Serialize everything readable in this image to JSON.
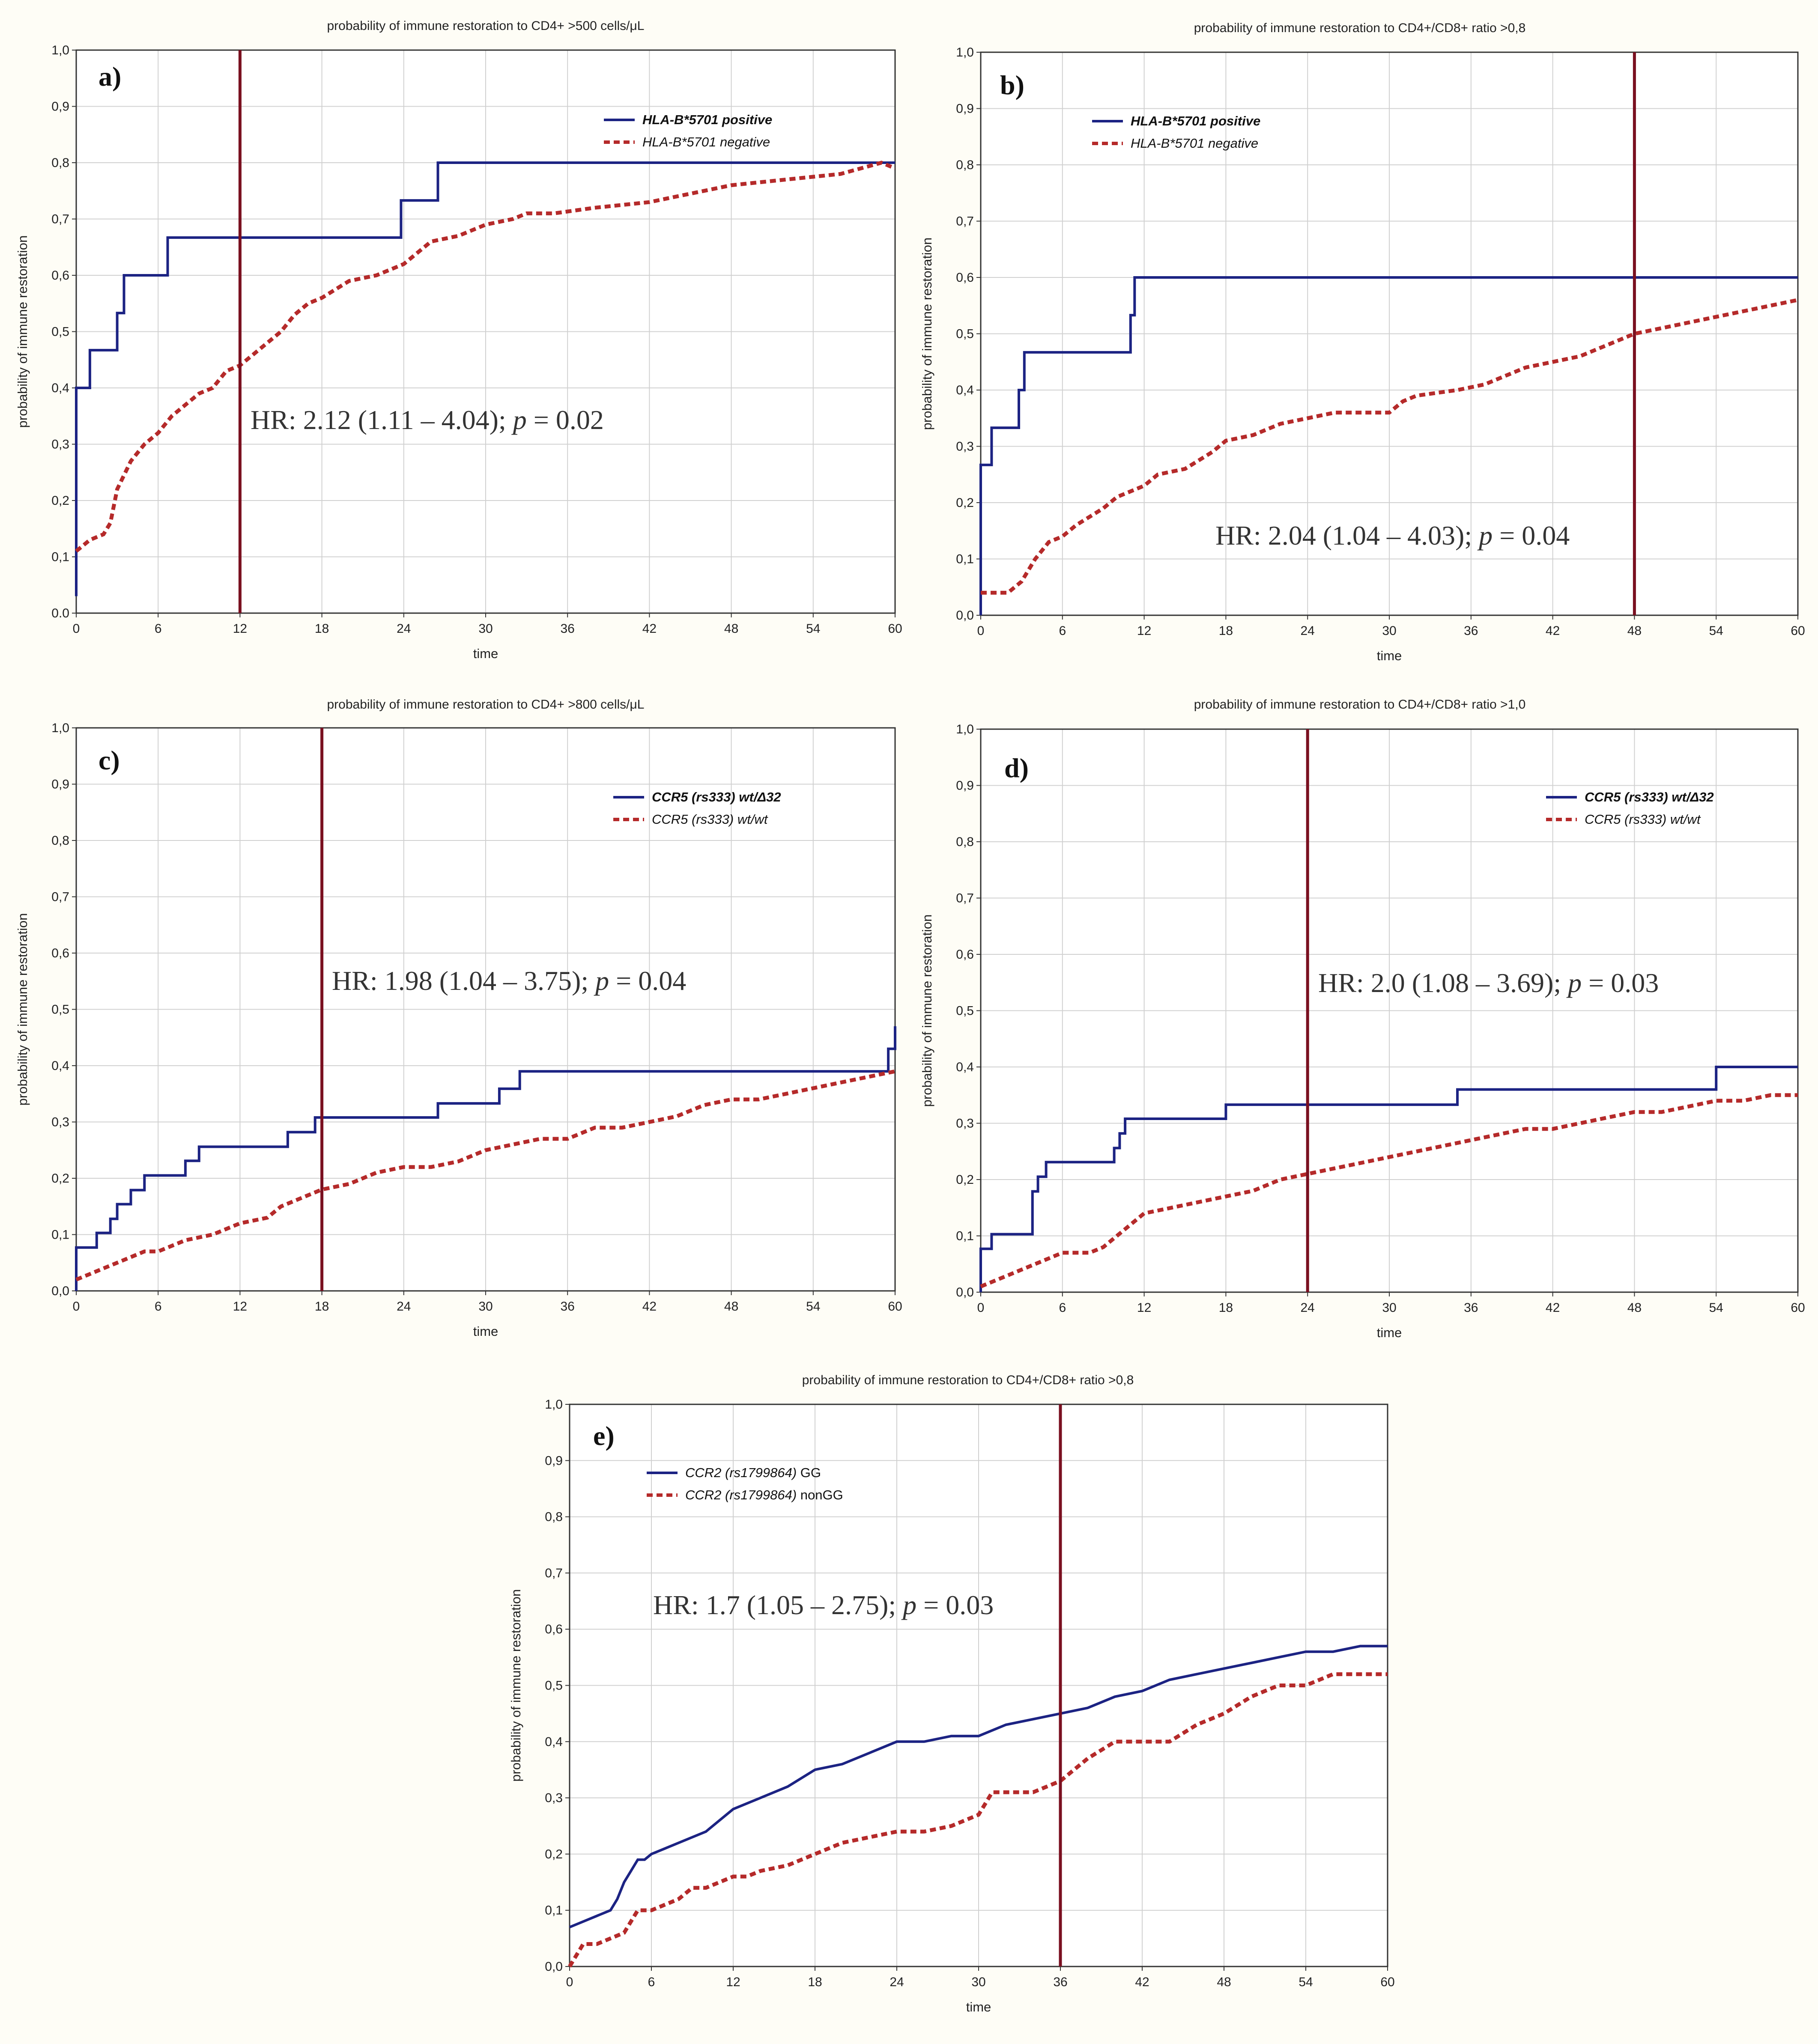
{
  "colors": {
    "blue_series": "#1c2383",
    "red_series": "#b52a2a",
    "vertical_line": "#7a1020",
    "grid": "#d0d0d0",
    "axis": "#333333",
    "plot_bg": "#ffffff"
  },
  "chart_data": [
    {
      "id": "a",
      "type": "line",
      "panel_label": "a)",
      "title": "probability of immune restoration to CD4+ >500 cells/μL",
      "xlabel": "time",
      "ylabel": "probability of immune restoration",
      "xlim": [
        0,
        60
      ],
      "ylim": [
        0,
        1
      ],
      "xticks": [
        "0",
        "6",
        "12",
        "18",
        "24",
        "30",
        "36",
        "42",
        "48",
        "54",
        "60"
      ],
      "yticks": [
        "0.0",
        "0,1",
        "0,2",
        "0,3",
        "0,4",
        "0,5",
        "0,6",
        "0,7",
        "0,8",
        "0,9",
        "1,0"
      ],
      "vline": 12,
      "hr_text": "HR: 2.12 (1.11 – 4.04); ",
      "p_label": "p",
      "p_text": " = 0.02",
      "legend_position": "top-right",
      "series": [
        {
          "name": "HLA-B*5701 positive",
          "style": "solid",
          "bold": true,
          "italic": true,
          "x": [
            0,
            0,
            1,
            1,
            3,
            3,
            3.5,
            3.5,
            6.7,
            6.7,
            23.8,
            23.8,
            26.5,
            26.5,
            60
          ],
          "y": [
            0.03,
            0.4,
            0.4,
            0.467,
            0.467,
            0.533,
            0.533,
            0.6,
            0.6,
            0.667,
            0.667,
            0.733,
            0.733,
            0.8,
            0.8
          ]
        },
        {
          "name": "HLA-B*5701 negative",
          "style": "dashed",
          "bold": false,
          "italic": true,
          "x": [
            0,
            1,
            2,
            2.5,
            3,
            4,
            5,
            6,
            7,
            8,
            9,
            10,
            11,
            12,
            13,
            14,
            15,
            16,
            17,
            18,
            20,
            22,
            24,
            25,
            26,
            28,
            30,
            32,
            33,
            35,
            38,
            42,
            44,
            46,
            48,
            52,
            56,
            59,
            60
          ],
          "y": [
            0.11,
            0.13,
            0.14,
            0.16,
            0.22,
            0.27,
            0.3,
            0.32,
            0.35,
            0.37,
            0.39,
            0.4,
            0.43,
            0.44,
            0.46,
            0.48,
            0.5,
            0.53,
            0.55,
            0.56,
            0.59,
            0.6,
            0.62,
            0.64,
            0.66,
            0.67,
            0.69,
            0.7,
            0.71,
            0.71,
            0.72,
            0.73,
            0.74,
            0.75,
            0.76,
            0.77,
            0.78,
            0.8,
            0.79
          ]
        }
      ]
    },
    {
      "id": "b",
      "type": "line",
      "panel_label": "b)",
      "title": "probability of immune restoration to CD4+/CD8+ ratio >0,8",
      "xlabel": "time",
      "ylabel": "probability of immune restoration",
      "xlim": [
        0,
        60
      ],
      "ylim": [
        0,
        1
      ],
      "xticks": [
        "0",
        "6",
        "12",
        "18",
        "24",
        "30",
        "36",
        "42",
        "48",
        "54",
        "60"
      ],
      "yticks": [
        "0,0",
        "0,1",
        "0,2",
        "0,3",
        "0,4",
        "0,5",
        "0,6",
        "0,7",
        "0,8",
        "0,9",
        "1,0"
      ],
      "vline": 48,
      "hr_text": "HR: 2.04 (1.04 – 4.03); ",
      "p_label": "p",
      "p_text": " = 0.04",
      "legend_position": "top-left",
      "series": [
        {
          "name": "HLA-B*5701 positive",
          "style": "solid",
          "bold": true,
          "italic": true,
          "x": [
            0,
            0,
            0.8,
            0.8,
            2.8,
            2.8,
            3.2,
            3.2,
            11,
            11,
            11.3,
            11.3,
            60
          ],
          "y": [
            0.0,
            0.267,
            0.267,
            0.333,
            0.333,
            0.4,
            0.4,
            0.467,
            0.467,
            0.533,
            0.533,
            0.6,
            0.6
          ]
        },
        {
          "name": "HLA-B*5701 negative",
          "style": "dashed",
          "bold": false,
          "italic": true,
          "x": [
            0,
            2,
            3,
            4,
            5,
            6,
            7,
            9,
            10,
            12,
            13,
            15,
            17,
            18,
            20,
            22,
            24,
            26,
            28,
            30,
            31,
            32,
            35,
            37,
            38,
            40,
            42,
            44,
            46,
            48,
            50,
            52,
            54,
            56,
            58,
            60
          ],
          "y": [
            0.04,
            0.04,
            0.06,
            0.1,
            0.13,
            0.14,
            0.16,
            0.19,
            0.21,
            0.23,
            0.25,
            0.26,
            0.29,
            0.31,
            0.32,
            0.34,
            0.35,
            0.36,
            0.36,
            0.36,
            0.38,
            0.39,
            0.4,
            0.41,
            0.42,
            0.44,
            0.45,
            0.46,
            0.48,
            0.5,
            0.51,
            0.52,
            0.53,
            0.54,
            0.55,
            0.56
          ]
        }
      ]
    },
    {
      "id": "c",
      "type": "line",
      "panel_label": "c)",
      "title": "probability of immune restoration to CD4+ >800 cells/μL",
      "xlabel": "time",
      "ylabel": "probability of immune restoration",
      "xlim": [
        0,
        60
      ],
      "ylim": [
        0,
        1
      ],
      "xticks": [
        "0",
        "6",
        "12",
        "18",
        "24",
        "30",
        "36",
        "42",
        "48",
        "54",
        "60"
      ],
      "yticks": [
        "0,0",
        "0,1",
        "0,2",
        "0,3",
        "0,4",
        "0,5",
        "0,6",
        "0,7",
        "0,8",
        "0,9",
        "1,0"
      ],
      "vline": 18,
      "hr_text": "HR: 1.98 (1.04 – 3.75); ",
      "p_label": "p",
      "p_text": " = 0.04",
      "legend_position": "top-right",
      "series": [
        {
          "name": "CCR5 (rs333) wt/Δ32",
          "style": "solid",
          "bold": true,
          "italic": true,
          "x": [
            0,
            0,
            1.5,
            1.5,
            2.5,
            2.5,
            3,
            3,
            4,
            4,
            5,
            5,
            8,
            8,
            9,
            9,
            15.5,
            15.5,
            17.5,
            17.5,
            26.5,
            26.5,
            31,
            31,
            32.5,
            32.5,
            59.5,
            59.5,
            60,
            60
          ],
          "y": [
            0.0,
            0.077,
            0.077,
            0.103,
            0.103,
            0.128,
            0.128,
            0.154,
            0.154,
            0.179,
            0.179,
            0.205,
            0.205,
            0.231,
            0.231,
            0.256,
            0.256,
            0.282,
            0.282,
            0.308,
            0.308,
            0.333,
            0.333,
            0.359,
            0.359,
            0.39,
            0.39,
            0.43,
            0.43,
            0.47
          ]
        },
        {
          "name": "CCR5 (rs333) wt/wt",
          "style": "dashed",
          "bold": false,
          "italic": true,
          "x": [
            0,
            1,
            2,
            3,
            4,
            5,
            6,
            7,
            8,
            10,
            12,
            14,
            15,
            16,
            18,
            20,
            22,
            24,
            26,
            28,
            30,
            32,
            34,
            36,
            38,
            40,
            42,
            44,
            46,
            48,
            50,
            52,
            54,
            56,
            58,
            60
          ],
          "y": [
            0.02,
            0.03,
            0.04,
            0.05,
            0.06,
            0.07,
            0.07,
            0.08,
            0.09,
            0.1,
            0.12,
            0.13,
            0.15,
            0.16,
            0.18,
            0.19,
            0.21,
            0.22,
            0.22,
            0.23,
            0.25,
            0.26,
            0.27,
            0.27,
            0.29,
            0.29,
            0.3,
            0.31,
            0.33,
            0.34,
            0.34,
            0.35,
            0.36,
            0.37,
            0.38,
            0.39
          ]
        }
      ]
    },
    {
      "id": "d",
      "type": "line",
      "panel_label": "d)",
      "title": "probability of immune restoration to CD4+/CD8+ ratio >1,0",
      "xlabel": "time",
      "ylabel": "probability of immune restoration",
      "xlim": [
        0,
        60
      ],
      "ylim": [
        0,
        1
      ],
      "xticks": [
        "0",
        "6",
        "12",
        "18",
        "24",
        "30",
        "36",
        "42",
        "48",
        "54",
        "60"
      ],
      "yticks": [
        "0,0",
        "0,1",
        "0,2",
        "0,3",
        "0,4",
        "0,5",
        "0,6",
        "0,7",
        "0,8",
        "0,9",
        "1,0"
      ],
      "vline": 24,
      "hr_text": "HR: 2.0 (1.08 – 3.69); ",
      "p_label": "p",
      "p_text": " = 0.03",
      "legend_position": "top-right",
      "series": [
        {
          "name": "CCR5 (rs333) wt/Δ32",
          "style": "solid",
          "bold": true,
          "italic": true,
          "x": [
            0,
            0,
            0.8,
            0.8,
            3.8,
            3.8,
            4.2,
            4.2,
            4.8,
            4.8,
            9.8,
            9.8,
            10.2,
            10.2,
            10.6,
            10.6,
            18,
            18,
            35,
            35,
            54,
            54,
            60
          ],
          "y": [
            0.0,
            0.077,
            0.077,
            0.103,
            0.103,
            0.179,
            0.179,
            0.205,
            0.205,
            0.231,
            0.231,
            0.256,
            0.256,
            0.282,
            0.282,
            0.308,
            0.308,
            0.333,
            0.333,
            0.36,
            0.36,
            0.4,
            0.4
          ]
        },
        {
          "name": "CCR5 (rs333) wt/wt",
          "style": "dashed",
          "bold": false,
          "italic": true,
          "x": [
            0,
            1,
            2,
            3,
            4,
            5,
            6,
            8,
            9,
            10,
            11,
            12,
            14,
            16,
            18,
            20,
            22,
            24,
            26,
            28,
            30,
            32,
            34,
            36,
            38,
            40,
            42,
            44,
            46,
            48,
            50,
            52,
            54,
            56,
            58,
            60
          ],
          "y": [
            0.01,
            0.02,
            0.03,
            0.04,
            0.05,
            0.06,
            0.07,
            0.07,
            0.08,
            0.1,
            0.12,
            0.14,
            0.15,
            0.16,
            0.17,
            0.18,
            0.2,
            0.21,
            0.22,
            0.23,
            0.24,
            0.25,
            0.26,
            0.27,
            0.28,
            0.29,
            0.29,
            0.3,
            0.31,
            0.32,
            0.32,
            0.33,
            0.34,
            0.34,
            0.35,
            0.35
          ]
        }
      ]
    },
    {
      "id": "e",
      "type": "line",
      "panel_label": "e)",
      "title": "probability of immune restoration to CD4+/CD8+ ratio >0,8",
      "xlabel": "time",
      "ylabel": "probability of immune restoration",
      "xlim": [
        0,
        60
      ],
      "ylim": [
        0,
        1
      ],
      "xticks": [
        "0",
        "6",
        "12",
        "18",
        "24",
        "30",
        "36",
        "42",
        "48",
        "54",
        "60"
      ],
      "yticks": [
        "0,0",
        "0,1",
        "0,2",
        "0,3",
        "0,4",
        "0,5",
        "0,6",
        "0,7",
        "0,8",
        "0,9",
        "1,0"
      ],
      "vline": 36,
      "hr_text": "HR: 1.7 (1.05 – 2.75); ",
      "p_label": "p",
      "p_text": " = 0.03",
      "legend_position": "top-left",
      "series": [
        {
          "name": "CCR2 (rs1799864) GG",
          "name_italic": "CCR2 (rs1799864)",
          "name_plain": " GG",
          "style": "solid",
          "bold": false,
          "italic": false,
          "x": [
            0,
            1,
            2,
            3,
            3.5,
            4,
            4.5,
            5,
            5.5,
            6,
            7,
            8,
            9,
            10,
            11,
            12,
            14,
            16,
            18,
            20,
            22,
            24,
            26,
            28,
            30,
            32,
            34,
            36,
            38,
            40,
            42,
            44,
            46,
            48,
            50,
            52,
            54,
            56,
            58,
            60
          ],
          "y": [
            0.07,
            0.08,
            0.09,
            0.1,
            0.12,
            0.15,
            0.17,
            0.19,
            0.19,
            0.2,
            0.21,
            0.22,
            0.23,
            0.24,
            0.26,
            0.28,
            0.3,
            0.32,
            0.35,
            0.36,
            0.38,
            0.4,
            0.4,
            0.41,
            0.41,
            0.43,
            0.44,
            0.45,
            0.46,
            0.48,
            0.49,
            0.51,
            0.52,
            0.53,
            0.54,
            0.55,
            0.56,
            0.56,
            0.57,
            0.57
          ]
        },
        {
          "name": "CCR2 (rs1799864) nonGG",
          "name_italic": "CCR2 (rs1799864)",
          "name_plain": " nonGG",
          "style": "dashed",
          "bold": false,
          "italic": false,
          "x": [
            0,
            0.5,
            1,
            2,
            3,
            4,
            5,
            6,
            8,
            9,
            10,
            11,
            12,
            13,
            14,
            16,
            17,
            18,
            20,
            22,
            24,
            26,
            28,
            30,
            31,
            32,
            34,
            36,
            38,
            40,
            42,
            44,
            46,
            48,
            50,
            52,
            54,
            56,
            58,
            60
          ],
          "y": [
            0.0,
            0.02,
            0.04,
            0.04,
            0.05,
            0.06,
            0.1,
            0.1,
            0.12,
            0.14,
            0.14,
            0.15,
            0.16,
            0.16,
            0.17,
            0.18,
            0.19,
            0.2,
            0.22,
            0.23,
            0.24,
            0.24,
            0.25,
            0.27,
            0.31,
            0.31,
            0.31,
            0.33,
            0.37,
            0.4,
            0.4,
            0.4,
            0.43,
            0.45,
            0.48,
            0.5,
            0.5,
            0.52,
            0.52,
            0.52
          ]
        }
      ]
    }
  ]
}
